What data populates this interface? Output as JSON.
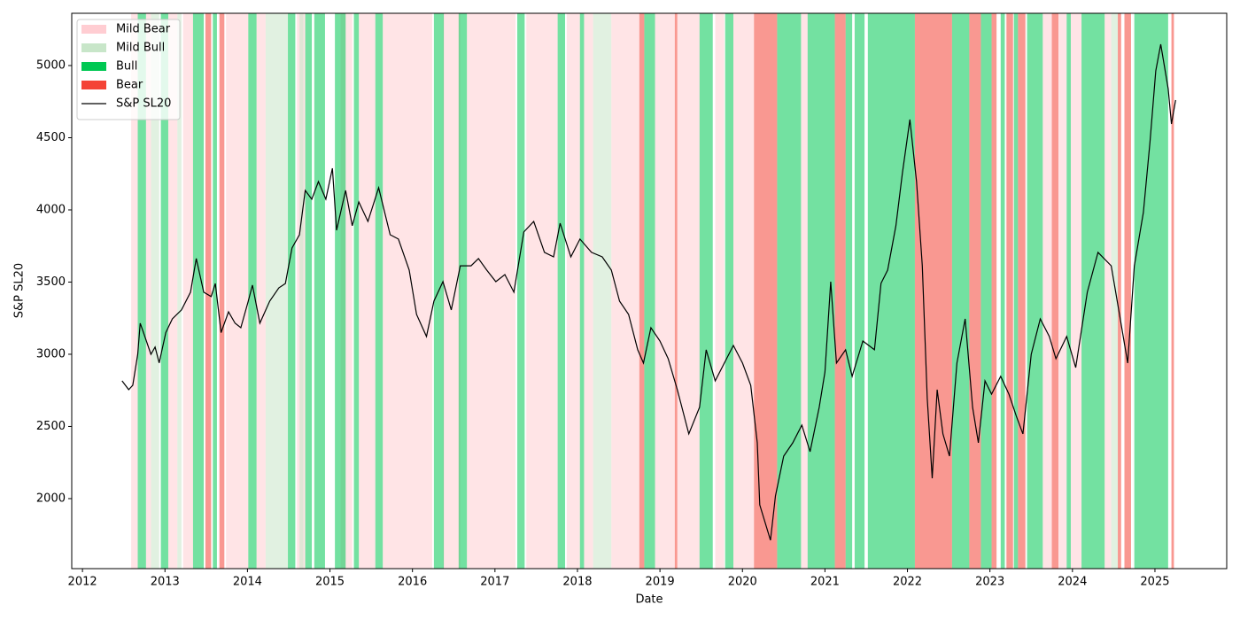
{
  "chart_data": {
    "type": "line",
    "x_label": "Date",
    "y_label": "S&P SL20",
    "xlim": [
      2011.87,
      2025.87
    ],
    "xticks": [
      2012,
      2013,
      2014,
      2015,
      2016,
      2017,
      2018,
      2019,
      2020,
      2021,
      2022,
      2023,
      2024,
      2025
    ],
    "ylim": [
      1515,
      5362
    ],
    "yticks": [
      2000,
      2500,
      3000,
      3500,
      4000,
      4500,
      5000
    ],
    "legend": "upper left",
    "regimes": [
      {
        "name": "Mild Bear",
        "color": "#ffcdd2",
        "spans": [
          [
            2012.59,
            2012.67
          ],
          [
            2012.77,
            2012.83
          ],
          [
            2013.04,
            2013.15
          ],
          [
            2013.22,
            2013.34
          ],
          [
            2013.74,
            2014.01
          ],
          [
            2014.11,
            2014.22
          ],
          [
            2014.6,
            2014.7
          ],
          [
            2015.13,
            2015.27
          ],
          [
            2015.35,
            2015.55
          ],
          [
            2015.64,
            2016.24
          ],
          [
            2016.37,
            2016.58
          ],
          [
            2016.66,
            2017.25
          ],
          [
            2017.38,
            2017.76
          ],
          [
            2017.87,
            2018.03
          ],
          [
            2018.08,
            2018.19
          ],
          [
            2018.41,
            2018.75
          ],
          [
            2018.94,
            2019.18
          ],
          [
            2019.21,
            2019.48
          ],
          [
            2019.67,
            2019.78
          ],
          [
            2019.89,
            2020.14
          ],
          [
            2020.71,
            2020.79
          ],
          [
            2023.64,
            2023.75
          ],
          [
            2023.83,
            2023.93
          ],
          [
            2023.98,
            2024.11
          ],
          [
            2024.39,
            2024.47
          ]
        ]
      },
      {
        "name": "Mild Bull",
        "color": "#c8e6c9",
        "spans": [
          [
            2012.83,
            2012.93
          ],
          [
            2013.15,
            2013.2
          ],
          [
            2014.22,
            2014.49
          ],
          [
            2014.63,
            2014.68
          ],
          [
            2018.19,
            2018.41
          ],
          [
            2024.47,
            2024.55
          ]
        ]
      },
      {
        "name": "Bull",
        "color": "#00c853",
        "spans": [
          [
            2012.67,
            2012.77
          ],
          [
            2012.95,
            2013.04
          ],
          [
            2013.34,
            2013.47
          ],
          [
            2013.58,
            2013.63
          ],
          [
            2014.01,
            2014.11
          ],
          [
            2014.49,
            2014.58
          ],
          [
            2014.7,
            2014.78
          ],
          [
            2014.81,
            2014.94
          ],
          [
            2015.06,
            2015.19
          ],
          [
            2015.29,
            2015.35
          ],
          [
            2015.55,
            2015.64
          ],
          [
            2016.26,
            2016.38
          ],
          [
            2016.56,
            2016.66
          ],
          [
            2017.27,
            2017.36
          ],
          [
            2017.76,
            2017.85
          ],
          [
            2018.03,
            2018.08
          ],
          [
            2018.81,
            2018.94
          ],
          [
            2019.48,
            2019.64
          ],
          [
            2019.79,
            2019.89
          ],
          [
            2020.42,
            2020.71
          ],
          [
            2020.79,
            2021.12
          ],
          [
            2021.25,
            2021.33
          ],
          [
            2021.36,
            2021.48
          ],
          [
            2021.52,
            2022.09
          ],
          [
            2022.54,
            2022.75
          ],
          [
            2022.89,
            2023.02
          ],
          [
            2023.13,
            2023.18
          ],
          [
            2023.29,
            2023.34
          ],
          [
            2023.45,
            2023.64
          ],
          [
            2023.93,
            2023.98
          ],
          [
            2024.11,
            2024.39
          ],
          [
            2024.75,
            2025.16
          ]
        ]
      },
      {
        "name": "Bear",
        "color": "#f44336",
        "spans": [
          [
            2013.49,
            2013.56
          ],
          [
            2013.66,
            2013.72
          ],
          [
            2018.75,
            2018.81
          ],
          [
            2019.18,
            2019.21
          ],
          [
            2020.14,
            2020.42
          ],
          [
            2021.12,
            2021.25
          ],
          [
            2022.09,
            2022.54
          ],
          [
            2022.75,
            2022.89
          ],
          [
            2023.02,
            2023.08
          ],
          [
            2023.2,
            2023.28
          ],
          [
            2023.34,
            2023.43
          ],
          [
            2023.75,
            2023.83
          ],
          [
            2024.55,
            2024.59
          ],
          [
            2024.63,
            2024.71
          ],
          [
            2025.2,
            2025.23
          ]
        ]
      }
    ],
    "x": [
      2012.48,
      2012.56,
      2012.61,
      2012.67,
      2012.7,
      2012.74,
      2012.83,
      2012.88,
      2012.93,
      2013.01,
      2013.09,
      2013.2,
      2013.31,
      2013.38,
      2013.47,
      2013.56,
      2013.61,
      2013.68,
      2013.77,
      2013.85,
      2013.92,
      2014.01,
      2014.06,
      2014.15,
      2014.27,
      2014.38,
      2014.46,
      2014.54,
      2014.63,
      2014.7,
      2014.78,
      2014.86,
      2014.95,
      2015.03,
      2015.08,
      2015.19,
      2015.27,
      2015.35,
      2015.46,
      2015.59,
      2015.73,
      2015.83,
      2015.96,
      2016.05,
      2016.17,
      2016.26,
      2016.37,
      2016.47,
      2016.58,
      2016.71,
      2016.8,
      2016.9,
      2017.01,
      2017.12,
      2017.23,
      2017.35,
      2017.47,
      2017.6,
      2017.71,
      2017.79,
      2017.92,
      2018.03,
      2018.17,
      2018.3,
      2018.41,
      2018.51,
      2018.62,
      2018.73,
      2018.8,
      2018.89,
      2019.0,
      2019.1,
      2019.21,
      2019.35,
      2019.48,
      2019.56,
      2019.67,
      2019.78,
      2019.89,
      2020.0,
      2020.1,
      2020.18,
      2020.21,
      2020.34,
      2020.4,
      2020.5,
      2020.61,
      2020.72,
      2020.82,
      2020.93,
      2021.0,
      2021.07,
      2021.14,
      2021.25,
      2021.33,
      2021.46,
      2021.6,
      2021.68,
      2021.76,
      2021.86,
      2021.94,
      2022.03,
      2022.11,
      2022.18,
      2022.24,
      2022.3,
      2022.36,
      2022.43,
      2022.51,
      2022.6,
      2022.7,
      2022.79,
      2022.86,
      2022.94,
      2023.02,
      2023.13,
      2023.23,
      2023.32,
      2023.4,
      2023.5,
      2023.61,
      2023.72,
      2023.8,
      2023.93,
      2024.04,
      2024.18,
      2024.31,
      2024.47,
      2024.58,
      2024.67,
      2024.75,
      2024.86,
      2024.94,
      2025.01,
      2025.07,
      2025.16,
      2025.2,
      2025.25
    ],
    "series": [
      {
        "name": "S&P SL20",
        "color": "#000000",
        "values": [
          2816,
          2755,
          2785,
          3000,
          3215,
          3150,
          3000,
          3050,
          2940,
          3150,
          3245,
          3307,
          3430,
          3663,
          3430,
          3400,
          3490,
          3150,
          3294,
          3215,
          3184,
          3368,
          3479,
          3215,
          3368,
          3460,
          3490,
          3736,
          3828,
          4135,
          4074,
          4196,
          4074,
          4288,
          3859,
          4135,
          3890,
          4055,
          3920,
          4153,
          3828,
          3798,
          3583,
          3276,
          3123,
          3368,
          3503,
          3307,
          3613,
          3613,
          3663,
          3583,
          3503,
          3552,
          3430,
          3847,
          3920,
          3706,
          3675,
          3908,
          3675,
          3798,
          3706,
          3675,
          3583,
          3368,
          3276,
          3031,
          2939,
          3184,
          3092,
          2969,
          2755,
          2448,
          2632,
          3031,
          2816,
          2939,
          3061,
          2939,
          2785,
          2387,
          1957,
          1712,
          2018,
          2294,
          2387,
          2509,
          2325,
          2632,
          2877,
          3503,
          2939,
          3031,
          2847,
          3092,
          3031,
          3491,
          3583,
          3890,
          4258,
          4626,
          4196,
          3613,
          2693,
          2141,
          2755,
          2448,
          2294,
          2939,
          3245,
          2632,
          2387,
          2816,
          2724,
          2847,
          2724,
          2571,
          2448,
          3000,
          3245,
          3123,
          2969,
          3123,
          2908,
          3430,
          3706,
          3613,
          3245,
          2939,
          3613,
          3982,
          4472,
          4963,
          5147,
          4840,
          4595,
          4761
        ]
      }
    ]
  }
}
